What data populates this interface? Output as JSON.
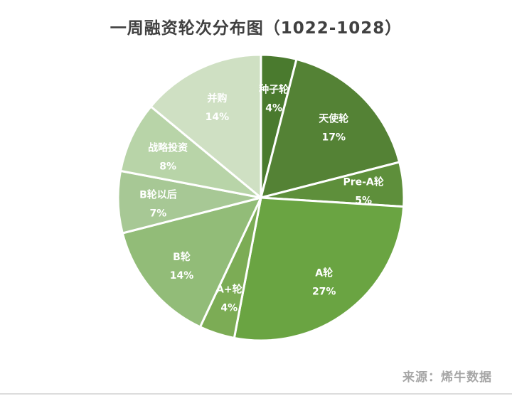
{
  "chart_data": {
    "type": "pie",
    "title": "一周融资轮次分布图（1022-1028）",
    "slices": [
      {
        "label": "种子轮",
        "value": 4,
        "value_text": "4%",
        "color": "#4a7a2e"
      },
      {
        "label": "天使轮",
        "value": 17,
        "value_text": "17%",
        "color": "#548235"
      },
      {
        "label": "Pre-A轮",
        "value": 5,
        "value_text": "5%",
        "color": "#5e8f3b"
      },
      {
        "label": "A轮",
        "value": 27,
        "value_text": "27%",
        "color": "#6aa442"
      },
      {
        "label": "A+轮",
        "value": 4,
        "value_text": "4%",
        "color": "#7cac55"
      },
      {
        "label": "B轮",
        "value": 14,
        "value_text": "14%",
        "color": "#92bc78"
      },
      {
        "label": "B轮以后",
        "value": 7,
        "value_text": "7%",
        "color": "#a7c895"
      },
      {
        "label": "战略投资",
        "value": 8,
        "value_text": "8%",
        "color": "#b8d4a8"
      },
      {
        "label": "并购",
        "value": 14,
        "value_text": "14%",
        "color": "#cfe0c3"
      }
    ]
  },
  "source": "来源：烯牛数据"
}
